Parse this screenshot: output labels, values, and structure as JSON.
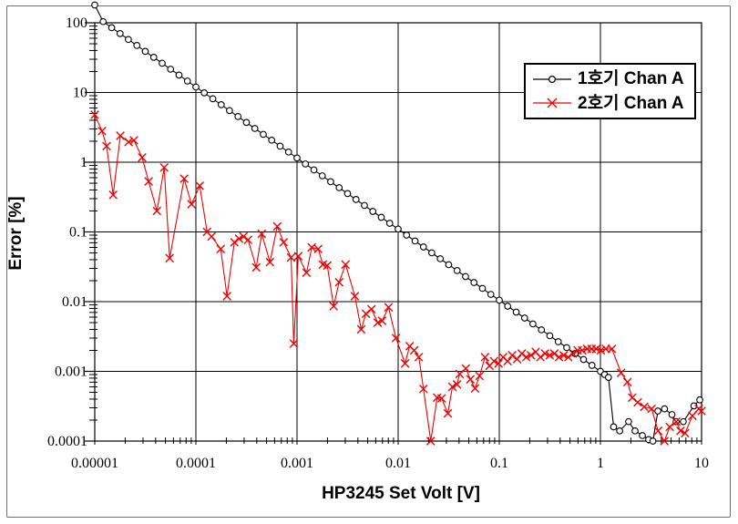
{
  "figure": {
    "background": "#ffffff",
    "border_color": "#6e6e6e"
  },
  "chart_data": {
    "type": "line",
    "title": "",
    "xlabel": "HP3245 Set Volt [V]",
    "ylabel": "Error [%]",
    "x_scale": "log",
    "y_scale": "log",
    "xlim": [
      1e-05,
      10
    ],
    "ylim": [
      0.0001,
      100
    ],
    "x_tick_labels": [
      "0.00001",
      "0.0001",
      "0.001",
      "0.01",
      "0.1",
      "1",
      "10"
    ],
    "y_tick_labels": [
      "100",
      "10",
      "1",
      "0.1",
      "0.01",
      "0.001",
      "0.0001"
    ],
    "grid": "major-both",
    "legend_position": "top-right",
    "axis_color": "#000000",
    "series": [
      {
        "name": "1호기 Chan A",
        "color": "#000000",
        "marker": "circle-open",
        "points": [
          [
            1e-05,
            180
          ],
          [
            1.21e-05,
            104
          ],
          [
            1.47e-05,
            85
          ],
          [
            1.78e-05,
            70
          ],
          [
            2.15e-05,
            57.6
          ],
          [
            2.61e-05,
            47.3
          ],
          [
            3.16e-05,
            38.9
          ],
          [
            3.83e-05,
            32.0
          ],
          [
            4.64e-05,
            26.3
          ],
          [
            5.62e-05,
            21.6
          ],
          [
            6.81e-05,
            17.8
          ],
          [
            8.25e-05,
            14.6
          ],
          [
            0.0001,
            12.0
          ],
          [
            0.000121,
            9.89
          ],
          [
            0.000147,
            8.13
          ],
          [
            0.000178,
            6.68
          ],
          [
            0.000215,
            5.5
          ],
          [
            0.000261,
            4.52
          ],
          [
            0.000316,
            3.72
          ],
          [
            0.000383,
            3.05
          ],
          [
            0.000464,
            2.51
          ],
          [
            0.000562,
            2.07
          ],
          [
            0.000681,
            1.7
          ],
          [
            0.000825,
            1.4
          ],
          [
            0.001,
            1.15
          ],
          [
            0.00121,
            0.944
          ],
          [
            0.00147,
            0.776
          ],
          [
            0.00178,
            0.638
          ],
          [
            0.00215,
            0.525
          ],
          [
            0.00261,
            0.431
          ],
          [
            0.00316,
            0.355
          ],
          [
            0.00383,
            0.292
          ],
          [
            0.00464,
            0.24
          ],
          [
            0.00562,
            0.197
          ],
          [
            0.00681,
            0.162
          ],
          [
            0.00825,
            0.133
          ],
          [
            0.01,
            0.11
          ],
          [
            0.0121,
            0.0901
          ],
          [
            0.0147,
            0.0741
          ],
          [
            0.0178,
            0.0609
          ],
          [
            0.0215,
            0.0501
          ],
          [
            0.0261,
            0.0412
          ],
          [
            0.0316,
            0.0339
          ],
          [
            0.0383,
            0.0279
          ],
          [
            0.0464,
            0.0229
          ],
          [
            0.0562,
            0.0188
          ],
          [
            0.0681,
            0.0155
          ],
          [
            0.0825,
            0.0127
          ],
          [
            0.1,
            0.0105
          ],
          [
            0.121,
            0.00861
          ],
          [
            0.147,
            0.00708
          ],
          [
            0.178,
            0.00582
          ],
          [
            0.215,
            0.00479
          ],
          [
            0.261,
            0.00394
          ],
          [
            0.316,
            0.00324
          ],
          [
            0.383,
            0.00266
          ],
          [
            0.464,
            0.00219
          ],
          [
            0.562,
            0.0018
          ],
          [
            0.681,
            0.00148
          ],
          [
            0.825,
            0.00122
          ],
          [
            1.0,
            0.001
          ],
          [
            1.1,
            0.0009
          ],
          [
            1.2,
            0.00082
          ],
          [
            1.35,
            0.00016
          ],
          [
            1.55,
            0.00014
          ],
          [
            1.9,
            0.00019
          ],
          [
            2.2,
            0.00014
          ],
          [
            2.6,
            0.00012
          ],
          [
            3.0,
            0.000105
          ],
          [
            3.3,
            0.0001
          ],
          [
            3.7,
            0.00027
          ],
          [
            4.3,
            0.00029
          ],
          [
            5.1,
            0.00024
          ],
          [
            5.6,
            0.00019
          ],
          [
            6.6,
            0.00019
          ],
          [
            8.4,
            0.00032
          ],
          [
            9.6,
            0.00039
          ]
        ]
      },
      {
        "name": "2호기 Chan A",
        "color": "#f00000",
        "marker": "x",
        "points": [
          [
            1e-05,
            4.8
          ],
          [
            1.18e-05,
            2.8
          ],
          [
            1.31e-05,
            1.7
          ],
          [
            1.52e-05,
            0.34
          ],
          [
            1.79e-05,
            2.4
          ],
          [
            2.16e-05,
            1.95
          ],
          [
            2.44e-05,
            2.06
          ],
          [
            2.94e-05,
            1.17
          ],
          [
            3.41e-05,
            0.53
          ],
          [
            4.12e-05,
            0.2
          ],
          [
            4.86e-05,
            0.84
          ],
          [
            5.5e-05,
            0.042
          ],
          [
            7.66e-05,
            0.58
          ],
          [
            9.05e-05,
            0.25
          ],
          [
            0.000109,
            0.46
          ],
          [
            0.000129,
            0.1
          ],
          [
            0.000143,
            0.086
          ],
          [
            0.000176,
            0.057
          ],
          [
            0.000203,
            0.012
          ],
          [
            0.00024,
            0.071
          ],
          [
            0.000267,
            0.08
          ],
          [
            0.000296,
            0.086
          ],
          [
            0.000328,
            0.077
          ],
          [
            0.000395,
            0.031
          ],
          [
            0.000448,
            0.094
          ],
          [
            0.00054,
            0.037
          ],
          [
            0.000638,
            0.12
          ],
          [
            0.000737,
            0.071
          ],
          [
            0.000873,
            0.043
          ],
          [
            0.000929,
            0.0025
          ],
          [
            0.00103,
            0.045
          ],
          [
            0.00124,
            0.026
          ],
          [
            0.0014,
            0.06
          ],
          [
            0.00162,
            0.057
          ],
          [
            0.0018,
            0.034
          ],
          [
            0.00199,
            0.033
          ],
          [
            0.0023,
            0.0086
          ],
          [
            0.00261,
            0.019
          ],
          [
            0.00302,
            0.034
          ],
          [
            0.00373,
            0.012
          ],
          [
            0.00431,
            0.004
          ],
          [
            0.0048,
            0.0067
          ],
          [
            0.00545,
            0.0078
          ],
          [
            0.00628,
            0.005
          ],
          [
            0.00694,
            0.0053
          ],
          [
            0.00803,
            0.0083
          ],
          [
            0.00951,
            0.003
          ],
          [
            0.0117,
            0.0013
          ],
          [
            0.013,
            0.0023
          ],
          [
            0.0144,
            0.002
          ],
          [
            0.016,
            0.0016
          ],
          [
            0.0178,
            0.00056
          ],
          [
            0.021,
            0.0001
          ],
          [
            0.0243,
            0.00042
          ],
          [
            0.0269,
            0.00041
          ],
          [
            0.031,
            0.00025
          ],
          [
            0.0344,
            0.0006
          ],
          [
            0.0382,
            0.00065
          ],
          [
            0.0406,
            0.00092
          ],
          [
            0.0467,
            0.0011
          ],
          [
            0.0518,
            0.00077
          ],
          [
            0.0576,
            0.00057
          ],
          [
            0.0638,
            0.00086
          ],
          [
            0.0722,
            0.0016
          ],
          [
            0.08,
            0.0012
          ],
          [
            0.0887,
            0.0014
          ],
          [
            0.0983,
            0.0013
          ],
          [
            0.109,
            0.0016
          ],
          [
            0.121,
            0.0014
          ],
          [
            0.134,
            0.0017
          ],
          [
            0.15,
            0.0015
          ],
          [
            0.167,
            0.0018
          ],
          [
            0.185,
            0.0016
          ],
          [
            0.206,
            0.0017
          ],
          [
            0.229,
            0.0019
          ],
          [
            0.255,
            0.0016
          ],
          [
            0.283,
            0.0018
          ],
          [
            0.315,
            0.0017
          ],
          [
            0.35,
            0.0018
          ],
          [
            0.389,
            0.0016
          ],
          [
            0.433,
            0.0017
          ],
          [
            0.481,
            0.0016
          ],
          [
            0.535,
            0.0018
          ],
          [
            0.595,
            0.002
          ],
          [
            0.662,
            0.002
          ],
          [
            0.736,
            0.0021
          ],
          [
            0.818,
            0.0021
          ],
          [
            0.91,
            0.0021
          ],
          [
            1.01,
            0.002
          ],
          [
            1.13,
            0.0021
          ],
          [
            1.3,
            0.0021
          ],
          [
            1.6,
            0.00095
          ],
          [
            1.85,
            0.0007
          ],
          [
            2.06,
            0.00042
          ],
          [
            2.34,
            0.00036
          ],
          [
            2.71,
            0.00031
          ],
          [
            3.21,
            0.00029
          ],
          [
            3.72,
            0.00014
          ],
          [
            4.29,
            0.0001
          ],
          [
            4.85,
            0.00016
          ],
          [
            5.61,
            0.00019
          ],
          [
            6.19,
            0.00014
          ],
          [
            6.87,
            0.00013
          ],
          [
            8.11,
            0.00023
          ],
          [
            9.39,
            0.00029
          ],
          [
            10.0,
            0.00027
          ]
        ]
      }
    ]
  }
}
